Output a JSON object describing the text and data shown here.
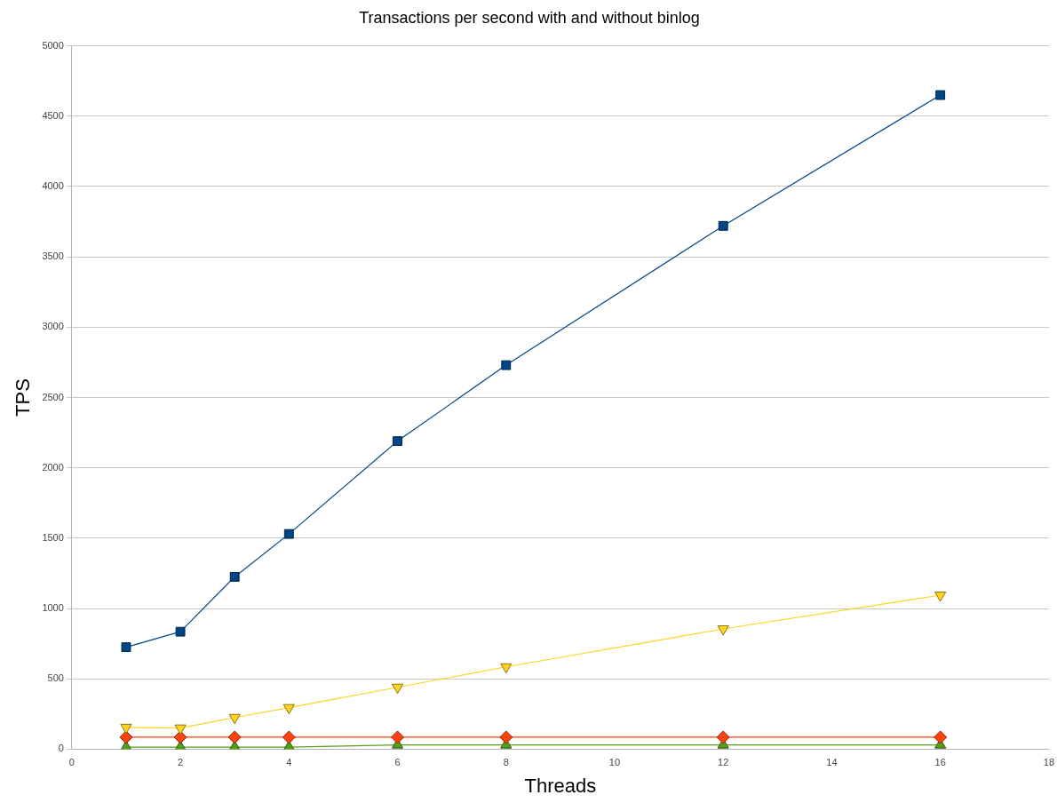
{
  "chart_data": {
    "type": "line",
    "title": "Transactions per second with and without binlog",
    "xlabel": "Threads",
    "ylabel": "TPS",
    "x": [
      1,
      2,
      3,
      4,
      6,
      8,
      12,
      16
    ],
    "series": [
      {
        "color": "#004586",
        "marker": "square",
        "values": [
          725,
          835,
          1225,
          1530,
          2190,
          2730,
          3720,
          4650
        ]
      },
      {
        "color": "#ffd320",
        "marker": "triangle-down",
        "values": [
          155,
          150,
          225,
          295,
          440,
          585,
          855,
          1095
        ]
      },
      {
        "color": "#ff420e",
        "marker": "diamond",
        "values": [
          85,
          85,
          85,
          85,
          85,
          85,
          85,
          85
        ]
      },
      {
        "color": "#579d1c",
        "marker": "triangle",
        "values": [
          15,
          15,
          15,
          15,
          30,
          30,
          30,
          30
        ]
      }
    ],
    "xlim": [
      0,
      18
    ],
    "xticks": [
      0,
      2,
      4,
      6,
      8,
      10,
      12,
      14,
      16,
      18
    ],
    "ylim": [
      0,
      5000
    ],
    "yticks": [
      0,
      500,
      1000,
      1500,
      2000,
      2500,
      3000,
      3500,
      4000,
      4500,
      5000
    ],
    "grid": "y",
    "legend": false
  }
}
